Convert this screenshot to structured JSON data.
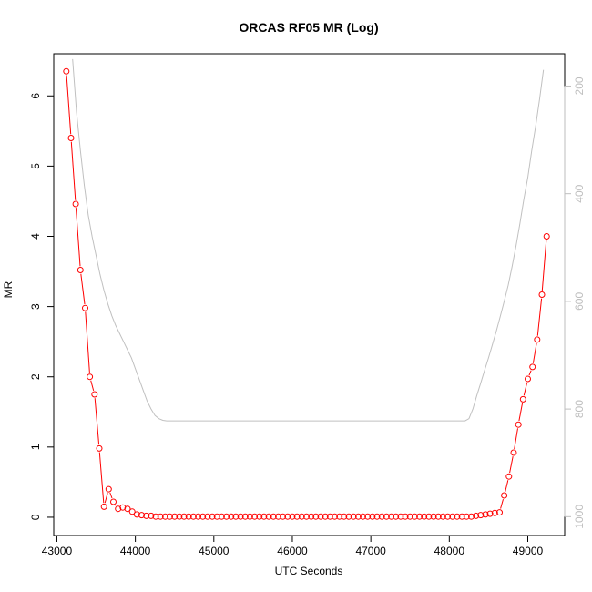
{
  "chart_data": {
    "type": "line",
    "title": "ORCAS RF05 MR (Log)",
    "xlabel": "UTC Seconds",
    "ylabel": "MR",
    "xlim": [
      42960,
      49470
    ],
    "ylim": [
      -0.26,
      6.6
    ],
    "x_ticks": [
      43000,
      44000,
      45000,
      46000,
      47000,
      48000,
      49000
    ],
    "y_ticks": [
      0,
      1,
      2,
      3,
      4,
      5,
      6
    ],
    "y2_lim": [
      1035,
      140
    ],
    "y2_ticks": [
      200,
      400,
      600,
      800,
      1000
    ],
    "grid": false,
    "legend": "none",
    "series": [
      {
        "color": "#ff0000",
        "marker": "open-circle",
        "x": [
          43120,
          43180,
          43240,
          43300,
          43360,
          43420,
          43480,
          43540,
          43600,
          43660,
          43720,
          43780,
          43840,
          43900,
          43960,
          44020,
          44080,
          44140,
          44200,
          44260,
          44320,
          44380,
          44440,
          44500,
          44560,
          44620,
          44680,
          44740,
          44800,
          44860,
          44920,
          44980,
          45040,
          45100,
          45160,
          45220,
          45280,
          45340,
          45400,
          45460,
          45520,
          45580,
          45640,
          45700,
          45760,
          45820,
          45880,
          45940,
          46000,
          46060,
          46120,
          46180,
          46240,
          46300,
          46360,
          46420,
          46480,
          46540,
          46600,
          46660,
          46720,
          46780,
          46840,
          46900,
          46960,
          47020,
          47080,
          47140,
          47200,
          47260,
          47320,
          47380,
          47440,
          47500,
          47560,
          47620,
          47680,
          47740,
          47800,
          47860,
          47920,
          47980,
          48040,
          48100,
          48160,
          48220,
          48280,
          48340,
          48400,
          48460,
          48520,
          48580,
          48640,
          48700,
          48760,
          48820,
          48880,
          48940,
          49000,
          49060,
          49120,
          49180,
          49240
        ],
        "y": [
          6.35,
          5.4,
          4.46,
          3.52,
          2.98,
          2.0,
          1.75,
          0.98,
          0.15,
          0.4,
          0.22,
          0.12,
          0.14,
          0.12,
          0.08,
          0.04,
          0.03,
          0.02,
          0.02,
          0.01,
          0.01,
          0.01,
          0.01,
          0.01,
          0.01,
          0.01,
          0.01,
          0.01,
          0.01,
          0.01,
          0.01,
          0.01,
          0.01,
          0.01,
          0.01,
          0.01,
          0.01,
          0.01,
          0.01,
          0.01,
          0.01,
          0.01,
          0.01,
          0.01,
          0.01,
          0.01,
          0.01,
          0.01,
          0.01,
          0.01,
          0.01,
          0.01,
          0.01,
          0.01,
          0.01,
          0.01,
          0.01,
          0.01,
          0.01,
          0.01,
          0.01,
          0.01,
          0.01,
          0.01,
          0.01,
          0.01,
          0.01,
          0.01,
          0.01,
          0.01,
          0.01,
          0.01,
          0.01,
          0.01,
          0.01,
          0.01,
          0.01,
          0.01,
          0.01,
          0.01,
          0.01,
          0.01,
          0.01,
          0.01,
          0.01,
          0.01,
          0.01,
          0.02,
          0.03,
          0.04,
          0.05,
          0.06,
          0.07,
          0.31,
          0.58,
          0.92,
          1.32,
          1.68,
          1.97,
          2.14,
          2.53,
          3.17,
          4.0
        ]
      },
      {
        "color": "#c0c0c0",
        "axis": "right",
        "x": [
          43200,
          43250,
          43300,
          43350,
          43400,
          43450,
          43500,
          43550,
          43600,
          43650,
          43700,
          43750,
          43800,
          43850,
          43900,
          43950,
          44000,
          44050,
          44100,
          44150,
          44200,
          44250,
          44300,
          44350,
          44400,
          45000,
          46000,
          47000,
          48000,
          48200,
          48250,
          48300,
          48350,
          48400,
          48450,
          48500,
          48550,
          48600,
          48650,
          48700,
          48750,
          48800,
          48850,
          48900,
          48950,
          49000,
          49050,
          49100,
          49150,
          49200
        ],
        "y": [
          150,
          248,
          320,
          385,
          440,
          480,
          515,
          550,
          580,
          605,
          627,
          645,
          660,
          675,
          690,
          705,
          725,
          745,
          765,
          785,
          800,
          812,
          818,
          821,
          822,
          822,
          822,
          822,
          822,
          822,
          818,
          800,
          775,
          752,
          728,
          705,
          680,
          655,
          628,
          600,
          570,
          535,
          497,
          455,
          410,
          370,
          320,
          275,
          225,
          170
        ]
      }
    ]
  }
}
